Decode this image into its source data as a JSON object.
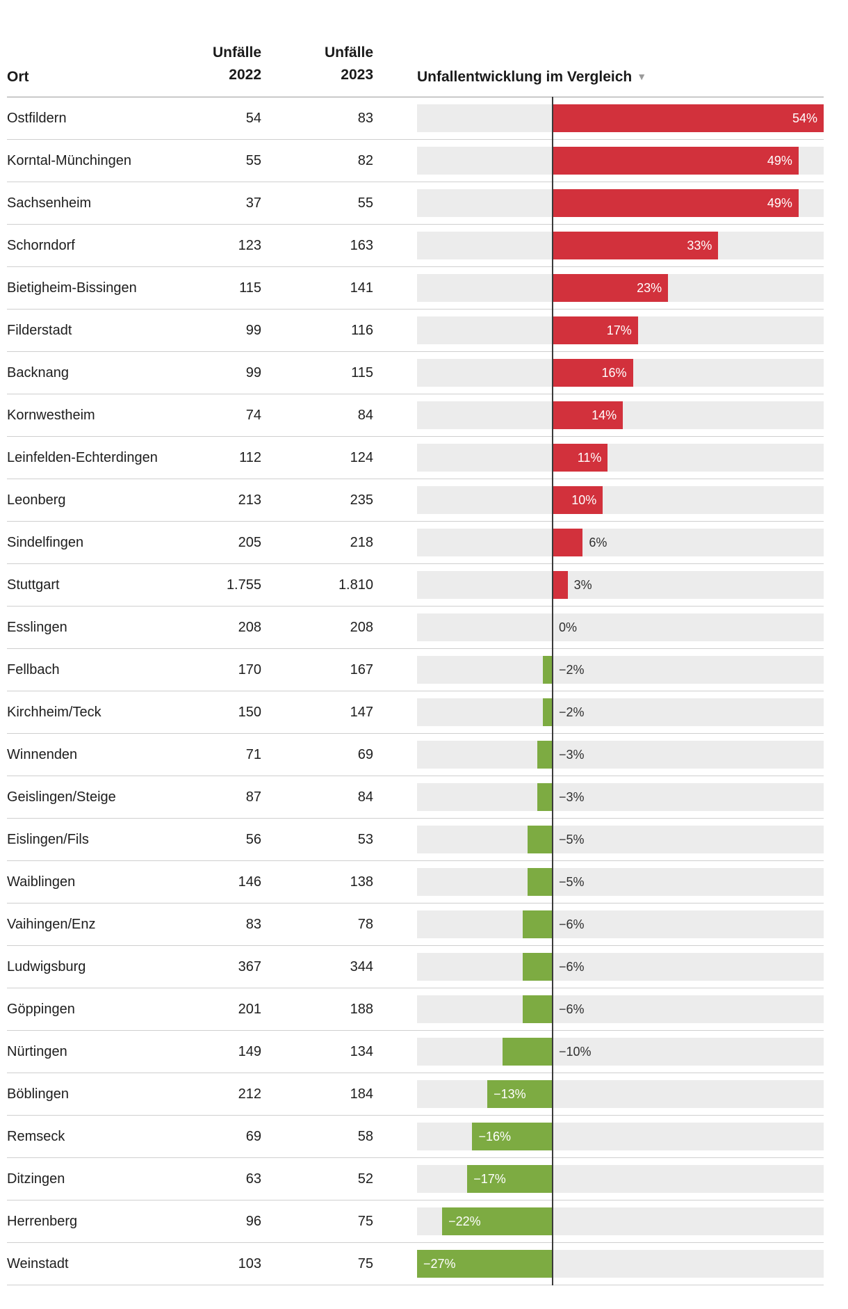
{
  "header": {
    "col_ort": "Ort",
    "col_2022": {
      "line1": "Unfälle",
      "line2": "2022"
    },
    "col_2023": {
      "line1": "Unfälle",
      "line2": "2023"
    },
    "col_chart": "Unfallentwicklung im Vergleich",
    "sort_icon": "▼"
  },
  "chart_data": {
    "type": "bar",
    "orientation": "horizontal",
    "title": "Unfallentwicklung im Vergleich",
    "unit": "%",
    "axis_min": -27,
    "axis_max": 54,
    "columns": [
      "Ort",
      "Unfälle 2022",
      "Unfälle 2023",
      "Unfallentwicklung im Vergleich"
    ],
    "colors": {
      "positive_bar": "#d2313c",
      "negative_bar": "#7dab42",
      "bar_track": "#ececec",
      "zero_line": "#3a3a3a",
      "label_inside": "#ffffff",
      "label_outside": "#2f2f2f"
    },
    "rows": [
      {
        "ort": "Ostfildern",
        "unfaelle_2022": "54",
        "unfaelle_2023": "83",
        "change_pct": 54,
        "change_label": "54%"
      },
      {
        "ort": "Korntal-Münchingen",
        "unfaelle_2022": "55",
        "unfaelle_2023": "82",
        "change_pct": 49,
        "change_label": "49%"
      },
      {
        "ort": "Sachsenheim",
        "unfaelle_2022": "37",
        "unfaelle_2023": "55",
        "change_pct": 49,
        "change_label": "49%"
      },
      {
        "ort": "Schorndorf",
        "unfaelle_2022": "123",
        "unfaelle_2023": "163",
        "change_pct": 33,
        "change_label": "33%"
      },
      {
        "ort": "Bietigheim-Bissingen",
        "unfaelle_2022": "115",
        "unfaelle_2023": "141",
        "change_pct": 23,
        "change_label": "23%"
      },
      {
        "ort": "Filderstadt",
        "unfaelle_2022": "99",
        "unfaelle_2023": "116",
        "change_pct": 17,
        "change_label": "17%"
      },
      {
        "ort": "Backnang",
        "unfaelle_2022": "99",
        "unfaelle_2023": "115",
        "change_pct": 16,
        "change_label": "16%"
      },
      {
        "ort": "Kornwestheim",
        "unfaelle_2022": "74",
        "unfaelle_2023": "84",
        "change_pct": 14,
        "change_label": "14%"
      },
      {
        "ort": "Leinfelden-Echterdingen",
        "unfaelle_2022": "112",
        "unfaelle_2023": "124",
        "change_pct": 11,
        "change_label": "11%"
      },
      {
        "ort": "Leonberg",
        "unfaelle_2022": "213",
        "unfaelle_2023": "235",
        "change_pct": 10,
        "change_label": "10%"
      },
      {
        "ort": "Sindelfingen",
        "unfaelle_2022": "205",
        "unfaelle_2023": "218",
        "change_pct": 6,
        "change_label": "6%"
      },
      {
        "ort": "Stuttgart",
        "unfaelle_2022": "1.755",
        "unfaelle_2023": "1.810",
        "change_pct": 3,
        "change_label": "3%"
      },
      {
        "ort": "Esslingen",
        "unfaelle_2022": "208",
        "unfaelle_2023": "208",
        "change_pct": 0,
        "change_label": "0%"
      },
      {
        "ort": "Fellbach",
        "unfaelle_2022": "170",
        "unfaelle_2023": "167",
        "change_pct": -2,
        "change_label": "−2%"
      },
      {
        "ort": "Kirchheim/Teck",
        "unfaelle_2022": "150",
        "unfaelle_2023": "147",
        "change_pct": -2,
        "change_label": "−2%"
      },
      {
        "ort": "Winnenden",
        "unfaelle_2022": "71",
        "unfaelle_2023": "69",
        "change_pct": -3,
        "change_label": "−3%"
      },
      {
        "ort": "Geislingen/Steige",
        "unfaelle_2022": "87",
        "unfaelle_2023": "84",
        "change_pct": -3,
        "change_label": "−3%"
      },
      {
        "ort": "Eislingen/Fils",
        "unfaelle_2022": "56",
        "unfaelle_2023": "53",
        "change_pct": -5,
        "change_label": "−5%"
      },
      {
        "ort": "Waiblingen",
        "unfaelle_2022": "146",
        "unfaelle_2023": "138",
        "change_pct": -5,
        "change_label": "−5%"
      },
      {
        "ort": "Vaihingen/Enz",
        "unfaelle_2022": "83",
        "unfaelle_2023": "78",
        "change_pct": -6,
        "change_label": "−6%"
      },
      {
        "ort": "Ludwigsburg",
        "unfaelle_2022": "367",
        "unfaelle_2023": "344",
        "change_pct": -6,
        "change_label": "−6%"
      },
      {
        "ort": "Göppingen",
        "unfaelle_2022": "201",
        "unfaelle_2023": "188",
        "change_pct": -6,
        "change_label": "−6%"
      },
      {
        "ort": "Nürtingen",
        "unfaelle_2022": "149",
        "unfaelle_2023": "134",
        "change_pct": -10,
        "change_label": "−10%"
      },
      {
        "ort": "Böblingen",
        "unfaelle_2022": "212",
        "unfaelle_2023": "184",
        "change_pct": -13,
        "change_label": "−13%"
      },
      {
        "ort": "Remseck",
        "unfaelle_2022": "69",
        "unfaelle_2023": "58",
        "change_pct": -16,
        "change_label": "−16%"
      },
      {
        "ort": "Ditzingen",
        "unfaelle_2022": "63",
        "unfaelle_2023": "52",
        "change_pct": -17,
        "change_label": "−17%"
      },
      {
        "ort": "Herrenberg",
        "unfaelle_2022": "96",
        "unfaelle_2023": "75",
        "change_pct": -22,
        "change_label": "−22%"
      },
      {
        "ort": "Weinstadt",
        "unfaelle_2022": "103",
        "unfaelle_2023": "75",
        "change_pct": -27,
        "change_label": "−27%"
      }
    ]
  }
}
